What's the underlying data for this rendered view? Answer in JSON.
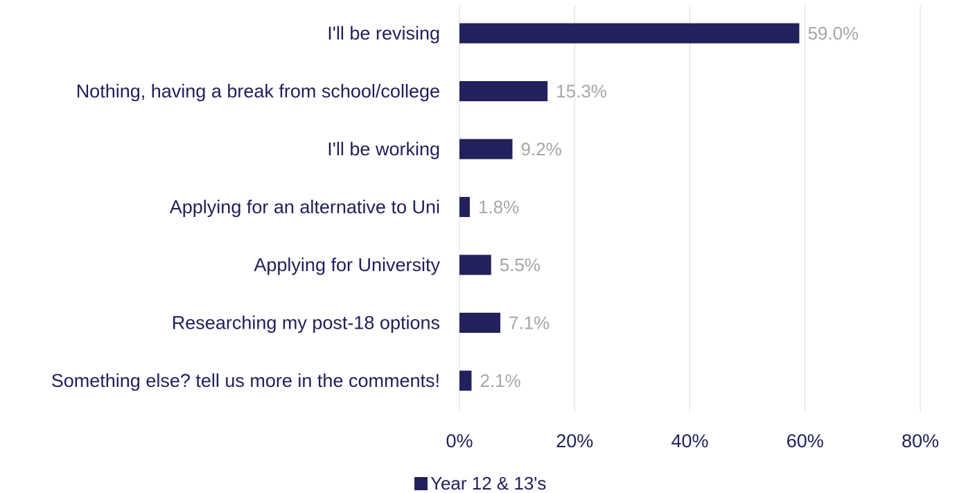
{
  "colors": {
    "bar": "#22215b",
    "data_label": "#a6a6a6",
    "text": "#1f1f5c",
    "grid": "#d9d9d9"
  },
  "chart_data": {
    "type": "bar",
    "orientation": "horizontal",
    "categories": [
      "I'll be revising",
      "Nothing, having a break from school/college",
      "I'll be working",
      "Applying for an alternative to Uni",
      "Applying for University",
      "Researching my post-18 options",
      "Something else? tell us more in the comments!"
    ],
    "series": [
      {
        "name": "Year 12 & 13's",
        "values": [
          59.0,
          15.3,
          9.2,
          1.8,
          5.5,
          7.1,
          2.1
        ]
      }
    ],
    "data_labels": [
      "59.0%",
      "15.3%",
      "9.2%",
      "1.8%",
      "5.5%",
      "7.1%",
      "2.1%"
    ],
    "x_ticks": [
      0,
      20,
      40,
      60,
      80
    ],
    "x_tick_labels": [
      "0%",
      "20%",
      "40%",
      "60%",
      "80%"
    ],
    "xlim": [
      0,
      80
    ],
    "grid": "vertical",
    "legend_position": "bottom"
  }
}
